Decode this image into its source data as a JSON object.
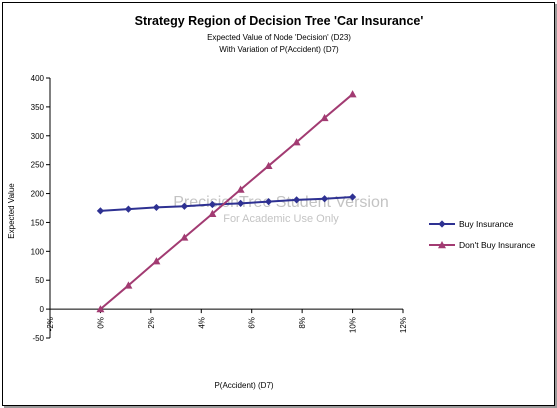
{
  "chart_data": {
    "type": "line",
    "title": "Strategy Region of Decision Tree 'Car Insurance'",
    "subtitle_lines": [
      "Expected Value of Node 'Decision' (D23)",
      "With Variation of P(Accident) (D7)"
    ],
    "xlabel": "P(Accident) (D7)",
    "ylabel": "Expected Value",
    "xlim": [
      -0.02,
      0.12
    ],
    "ylim": [
      -50,
      400
    ],
    "x_ticks": [
      "-2%",
      "0%",
      "2%",
      "4%",
      "6%",
      "8%",
      "10%",
      "12%"
    ],
    "y_ticks": [
      "-50",
      "0",
      "50",
      "100",
      "150",
      "200",
      "250",
      "300",
      "350",
      "400"
    ],
    "x": [
      0.0,
      0.0111,
      0.0222,
      0.0333,
      0.0444,
      0.0556,
      0.0667,
      0.0778,
      0.0889,
      0.1
    ],
    "series": [
      {
        "name": "Buy Insurance",
        "color": "#2e3192",
        "marker": "diamond",
        "values": [
          170,
          173,
          176,
          178,
          181,
          183,
          186,
          189,
          191,
          194
        ]
      },
      {
        "name": "Don't Buy Insurance",
        "color": "#a23b72",
        "marker": "triangle",
        "values": [
          0,
          41,
          83,
          124,
          165,
          207,
          248,
          289,
          331,
          372
        ]
      }
    ],
    "gridlines": false,
    "legend_position": "right"
  },
  "watermark": {
    "line1": "PrecisionTree Student Version",
    "line2": "For Academic Use Only"
  }
}
